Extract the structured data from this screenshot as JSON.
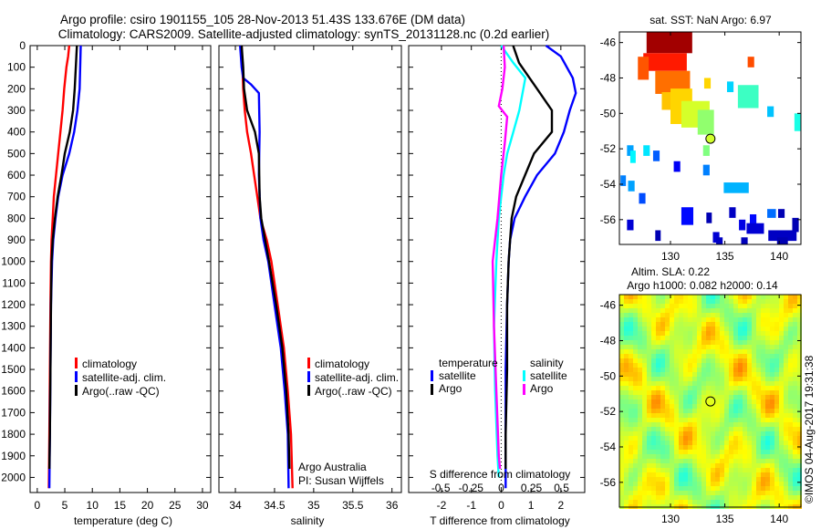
{
  "title_line1": "Argo profile: csiro 1901155_105 28-Nov-2013 51.43S 133.676E (DM data)",
  "title_line2": "Climatology: CARS2009. Satellite-adjusted climatology: synTS_20131128.nc (0.2d earlier)",
  "colors": {
    "climatology": "#ff0000",
    "satellite": "#0000ff",
    "argo": "#000000",
    "sal_satellite": "#00ffff",
    "sal_argo": "#ff00ff"
  },
  "chart_data": [
    {
      "type": "line",
      "xlabel": "temperature (deg C)",
      "xticks": [
        0,
        5,
        10,
        15,
        20,
        25,
        30
      ],
      "xlim": [
        -1.3,
        31.5
      ],
      "ylim": [
        0,
        2070
      ],
      "yticks": [
        0,
        100,
        200,
        300,
        400,
        500,
        600,
        700,
        800,
        900,
        1000,
        1100,
        1200,
        1300,
        1400,
        1500,
        1600,
        1700,
        1800,
        1900,
        2000
      ],
      "legend": [
        "climatology",
        "satellite-adj. clim.",
        "Argo(..raw -QC)"
      ],
      "series": [
        {
          "name": "climatology",
          "color_key": "climatology",
          "points": [
            [
              5.8,
              0
            ],
            [
              5.6,
              50
            ],
            [
              5.3,
              100
            ],
            [
              4.9,
              200
            ],
            [
              4.6,
              300
            ],
            [
              4.2,
              400
            ],
            [
              3.8,
              500
            ],
            [
              3.4,
              600
            ],
            [
              3.0,
              700
            ],
            [
              2.8,
              800
            ],
            [
              2.6,
              900
            ],
            [
              2.5,
              1000
            ],
            [
              2.4,
              1200
            ],
            [
              2.3,
              1500
            ],
            [
              2.2,
              1800
            ],
            [
              2.1,
              2050
            ]
          ]
        },
        {
          "name": "satellite-adj. clim.",
          "color_key": "satellite",
          "points": [
            [
              7.9,
              0
            ],
            [
              7.8,
              100
            ],
            [
              7.7,
              200
            ],
            [
              7.3,
              300
            ],
            [
              6.7,
              400
            ],
            [
              5.8,
              500
            ],
            [
              4.6,
              600
            ],
            [
              3.8,
              700
            ],
            [
              3.3,
              800
            ],
            [
              2.9,
              900
            ],
            [
              2.7,
              1000
            ],
            [
              2.5,
              1200
            ],
            [
              2.4,
              1500
            ],
            [
              2.3,
              1800
            ],
            [
              2.2,
              2050
            ]
          ]
        },
        {
          "name": "Argo(..raw -QC)",
          "color_key": "argo",
          "points": [
            [
              7.2,
              0
            ],
            [
              7.0,
              100
            ],
            [
              6.8,
              200
            ],
            [
              6.5,
              300
            ],
            [
              5.9,
              400
            ],
            [
              5.0,
              500
            ],
            [
              4.4,
              600
            ],
            [
              3.7,
              700
            ],
            [
              3.2,
              800
            ],
            [
              2.8,
              900
            ],
            [
              2.6,
              1000
            ],
            [
              2.5,
              1200
            ],
            [
              2.4,
              1500
            ],
            [
              2.3,
              1800
            ],
            [
              2.2,
              1960
            ]
          ]
        }
      ]
    },
    {
      "type": "line",
      "xlabel": "salinity",
      "xticks": [
        34,
        34.5,
        35,
        35.5,
        36
      ],
      "xlim": [
        33.79,
        36.12
      ],
      "ylim": [
        0,
        2070
      ],
      "legend": [
        "climatology",
        "satellite-adj. clim.",
        "Argo(..raw -QC)"
      ],
      "annotation": [
        "Argo Australia",
        "PI: Susan Wijffels"
      ],
      "series": [
        {
          "name": "climatology",
          "color_key": "climatology",
          "points": [
            [
              34.08,
              0
            ],
            [
              34.09,
              100
            ],
            [
              34.1,
              200
            ],
            [
              34.12,
              300
            ],
            [
              34.15,
              400
            ],
            [
              34.2,
              500
            ],
            [
              34.24,
              600
            ],
            [
              34.28,
              700
            ],
            [
              34.32,
              800
            ],
            [
              34.4,
              900
            ],
            [
              34.46,
              1000
            ],
            [
              34.54,
              1200
            ],
            [
              34.62,
              1400
            ],
            [
              34.67,
              1600
            ],
            [
              34.71,
              1800
            ],
            [
              34.73,
              2050
            ]
          ]
        },
        {
          "name": "satellite-adj. clim.",
          "color_key": "satellite",
          "points": [
            [
              34.06,
              0
            ],
            [
              34.08,
              100
            ],
            [
              34.1,
              150
            ],
            [
              34.2,
              180
            ],
            [
              34.3,
              220
            ],
            [
              34.31,
              400
            ],
            [
              34.3,
              600
            ],
            [
              34.32,
              800
            ],
            [
              34.36,
              900
            ],
            [
              34.42,
              1000
            ],
            [
              34.5,
              1200
            ],
            [
              34.58,
              1400
            ],
            [
              34.63,
              1600
            ],
            [
              34.67,
              1800
            ],
            [
              34.68,
              2050
            ]
          ]
        },
        {
          "name": "Argo(..raw -QC)",
          "color_key": "argo",
          "points": [
            [
              34.08,
              0
            ],
            [
              34.1,
              100
            ],
            [
              34.11,
              200
            ],
            [
              34.15,
              300
            ],
            [
              34.25,
              400
            ],
            [
              34.3,
              500
            ],
            [
              34.31,
              700
            ],
            [
              34.33,
              800
            ],
            [
              34.38,
              900
            ],
            [
              34.43,
              1000
            ],
            [
              34.52,
              1200
            ],
            [
              34.6,
              1400
            ],
            [
              34.65,
              1600
            ],
            [
              34.68,
              1800
            ],
            [
              34.69,
              1960
            ]
          ]
        }
      ]
    },
    {
      "type": "line",
      "xlabel": "T difference from climatology",
      "xlabel2": "S difference from climatology",
      "xticks": [
        -2,
        -1,
        0,
        1,
        2
      ],
      "xticks_s": [
        -0.5,
        -0.25,
        0,
        0.25,
        0.5
      ],
      "xlim": [
        -3.1,
        2.8
      ],
      "ylim": [
        0,
        2070
      ],
      "legend_temperature": [
        "temperature",
        "satellite",
        "Argo"
      ],
      "legend_salinity": [
        "salinity",
        "satellite",
        "Argo"
      ],
      "series": [
        {
          "name": "T satellite",
          "axis": "T",
          "color_key": "satellite",
          "points": [
            [
              1.5,
              0
            ],
            [
              2.0,
              50
            ],
            [
              2.4,
              150
            ],
            [
              2.5,
              220
            ],
            [
              2.3,
              300
            ],
            [
              2.1,
              400
            ],
            [
              1.8,
              500
            ],
            [
              1.2,
              600
            ],
            [
              0.8,
              700
            ],
            [
              0.45,
              800
            ],
            [
              0.3,
              900
            ],
            [
              0.25,
              1000
            ],
            [
              0.2,
              1200
            ],
            [
              0.15,
              1500
            ],
            [
              0.15,
              1800
            ],
            [
              0.15,
              2050
            ]
          ]
        },
        {
          "name": "T Argo",
          "axis": "T",
          "color_key": "argo",
          "points": [
            [
              0.4,
              0
            ],
            [
              0.6,
              80
            ],
            [
              1.2,
              200
            ],
            [
              1.7,
              300
            ],
            [
              1.7,
              400
            ],
            [
              1.1,
              500
            ],
            [
              0.8,
              600
            ],
            [
              0.5,
              700
            ],
            [
              0.35,
              800
            ],
            [
              0.3,
              900
            ],
            [
              0.25,
              1000
            ],
            [
              0.2,
              1200
            ],
            [
              0.2,
              1500
            ],
            [
              0.15,
              1800
            ],
            [
              0.15,
              1960
            ]
          ]
        },
        {
          "name": "S satellite",
          "axis": "S",
          "color_key": "sal_satellite",
          "points": [
            [
              0.0,
              0
            ],
            [
              0.1,
              80
            ],
            [
              0.2,
              150
            ],
            [
              0.15,
              300
            ],
            [
              0.1,
              400
            ],
            [
              0.05,
              500
            ],
            [
              0.02,
              600
            ],
            [
              0.0,
              700
            ],
            [
              -0.02,
              800
            ],
            [
              -0.04,
              1000
            ],
            [
              -0.06,
              1300
            ],
            [
              -0.05,
              1600
            ],
            [
              -0.03,
              1900
            ],
            [
              -0.02,
              2000
            ]
          ]
        },
        {
          "name": "S Argo",
          "axis": "S",
          "color_key": "sal_argo",
          "points": [
            [
              0.02,
              0
            ],
            [
              0.03,
              100
            ],
            [
              0.01,
              200
            ],
            [
              -0.02,
              280
            ],
            [
              0.05,
              330
            ],
            [
              0.03,
              450
            ],
            [
              0.0,
              600
            ],
            [
              -0.03,
              800
            ],
            [
              -0.07,
              1000
            ],
            [
              -0.06,
              1300
            ],
            [
              -0.04,
              1600
            ],
            [
              -0.02,
              1900
            ],
            [
              -0.01,
              1960
            ]
          ]
        }
      ]
    },
    {
      "type": "heatmap",
      "title": "sat. SST: NaN Argo: 6.97",
      "xticks": [
        130,
        135,
        140
      ],
      "yticks": [
        -46,
        -48,
        -50,
        -52,
        -54,
        -56
      ],
      "xlim": [
        125.3,
        142
      ],
      "ylim": [
        -57.4,
        -45.4
      ],
      "vrange": [
        0,
        12
      ],
      "argo": {
        "lon": 133.676,
        "lat": -51.43,
        "value": 6.97
      },
      "patches": [
        [
          127.8,
          -45.4,
          4.2,
          1.2,
          11.6
        ],
        [
          127.5,
          -46.6,
          4.0,
          1.0,
          10.2
        ],
        [
          127.0,
          -46.8,
          1.0,
          1.3,
          9.5
        ],
        [
          128.6,
          -47.6,
          3.2,
          1.3,
          9.2
        ],
        [
          129.2,
          -48.8,
          1.8,
          1.0,
          8.2
        ],
        [
          130.0,
          -48.6,
          2.0,
          2.0,
          8.0
        ],
        [
          131.0,
          -49.3,
          2.6,
          1.5,
          7.0
        ],
        [
          132.5,
          -49.8,
          1.5,
          1.4,
          6.2
        ],
        [
          133.1,
          -48.0,
          0.6,
          0.6,
          8.0
        ],
        [
          137.1,
          -46.8,
          0.6,
          0.6,
          9.6
        ],
        [
          135.2,
          -48.2,
          0.6,
          0.6,
          4.0
        ],
        [
          136.2,
          -48.4,
          1.9,
          1.3,
          5.2
        ],
        [
          138.9,
          -49.6,
          0.6,
          0.6,
          3.8
        ],
        [
          141.4,
          -50.0,
          0.6,
          1.0,
          4.8
        ],
        [
          126.0,
          -51.8,
          0.6,
          0.6,
          3.4
        ],
        [
          126.3,
          -52.1,
          0.5,
          0.7,
          4.4
        ],
        [
          127.5,
          -51.8,
          0.6,
          0.6,
          4.2
        ],
        [
          128.4,
          -52.1,
          0.6,
          0.6,
          2.6
        ],
        [
          130.3,
          -52.7,
          0.6,
          0.6,
          1.4
        ],
        [
          133.0,
          -51.8,
          0.6,
          0.6,
          6.0
        ],
        [
          133.0,
          -52.9,
          0.6,
          0.6,
          3.0
        ],
        [
          125.4,
          -53.5,
          0.5,
          0.6,
          3.0
        ],
        [
          126.1,
          -53.8,
          0.6,
          0.6,
          3.4
        ],
        [
          127.1,
          -54.5,
          0.6,
          0.6,
          2.4
        ],
        [
          134.9,
          -53.9,
          2.3,
          0.6,
          3.6
        ],
        [
          131.0,
          -55.3,
          1.1,
          1.0,
          1.6
        ],
        [
          133.3,
          -55.6,
          0.5,
          0.6,
          0.6
        ],
        [
          135.4,
          -55.3,
          0.6,
          0.6,
          0.8
        ],
        [
          126.0,
          -56.0,
          0.6,
          0.6,
          1.0
        ],
        [
          128.6,
          -56.6,
          0.5,
          0.6,
          0.6
        ],
        [
          136.3,
          -56.0,
          0.6,
          0.6,
          1.2
        ],
        [
          137.3,
          -55.7,
          0.6,
          0.6,
          1.6
        ],
        [
          138.9,
          -55.4,
          0.8,
          0.5,
          2.8
        ],
        [
          139.9,
          -55.4,
          0.6,
          0.5,
          0.6
        ],
        [
          141.2,
          -55.9,
          0.6,
          0.8,
          0.6
        ],
        [
          137.0,
          -56.2,
          1.6,
          0.6,
          1.0
        ],
        [
          139.0,
          -56.6,
          2.6,
          0.6,
          0.8
        ],
        [
          133.9,
          -56.7,
          0.6,
          0.6,
          1.0
        ],
        [
          134.2,
          -57.0,
          0.6,
          0.4,
          0.8
        ],
        [
          136.5,
          -57.0,
          0.6,
          0.4,
          0.7
        ],
        [
          139.8,
          -57.0,
          1.0,
          0.4,
          0.6
        ]
      ]
    },
    {
      "type": "heatmap",
      "title": "Altim. SLA: 0.22",
      "subtitle": "Argo h1000: 0.082 h2000: 0.14",
      "xticks": [
        130,
        135,
        140
      ],
      "yticks": [
        -46,
        -48,
        -50,
        -52,
        -54,
        -56
      ],
      "xlim": [
        125.3,
        142
      ],
      "ylim": [
        -57.4,
        -45.4
      ],
      "argo": {
        "lon": 133.676,
        "lat": -51.43
      }
    }
  ],
  "yaxis_label_note": "",
  "credit": "©IMOS 04-Aug-2017 19:31:38"
}
